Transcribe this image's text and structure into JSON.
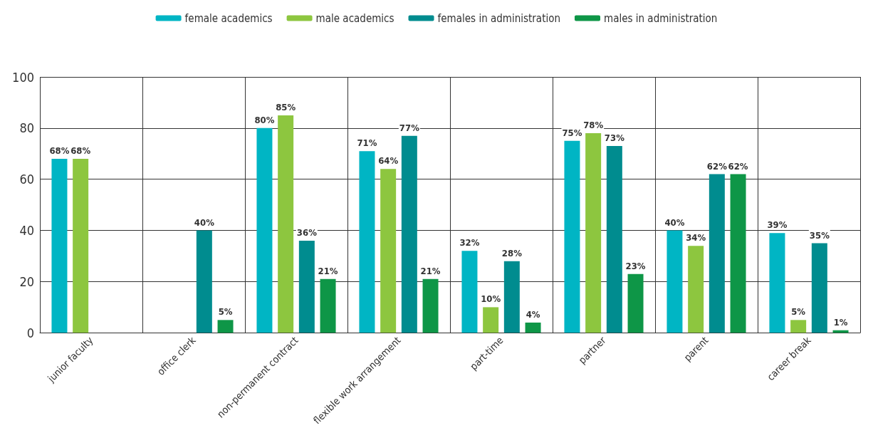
{
  "chart_data": {
    "type": "bar",
    "categories": [
      "junior faculty",
      "office clerk",
      "non-permanent contract",
      "flexible work arrangement",
      "part-time",
      "partner",
      "parent",
      "career break"
    ],
    "series": [
      {
        "name": "female academics",
        "color": "#00b5c4",
        "values": [
          68,
          null,
          80,
          71,
          32,
          75,
          40,
          39
        ],
        "value_labels": [
          "68%",
          null,
          "80%",
          "71%",
          "32%",
          "75%",
          "40%",
          "39%"
        ]
      },
      {
        "name": "male academics",
        "color": "#8dc63f",
        "values": [
          68,
          null,
          85,
          64,
          10,
          78,
          34,
          5
        ],
        "value_labels": [
          "68%",
          null,
          "85%",
          "64%",
          "10%",
          "78%",
          "34%",
          "5%"
        ]
      },
      {
        "name": "females in administration",
        "color": "#008c8f",
        "values": [
          null,
          40,
          36,
          77,
          28,
          73,
          62,
          35
        ],
        "value_labels": [
          null,
          "40%",
          "36%",
          "77%",
          "28%",
          "73%",
          "62%",
          "35%"
        ]
      },
      {
        "name": "males in administration",
        "color": "#0e9647",
        "values": [
          null,
          5,
          21,
          21,
          4,
          23,
          62,
          1
        ],
        "value_labels": [
          null,
          "5%",
          "21%",
          "21%",
          "4%",
          "23%",
          "62%",
          "1%"
        ]
      }
    ],
    "ylim": [
      0,
      100
    ],
    "yticks": [
      0,
      20,
      40,
      60,
      80,
      100
    ],
    "grid": true,
    "legend": "top"
  }
}
